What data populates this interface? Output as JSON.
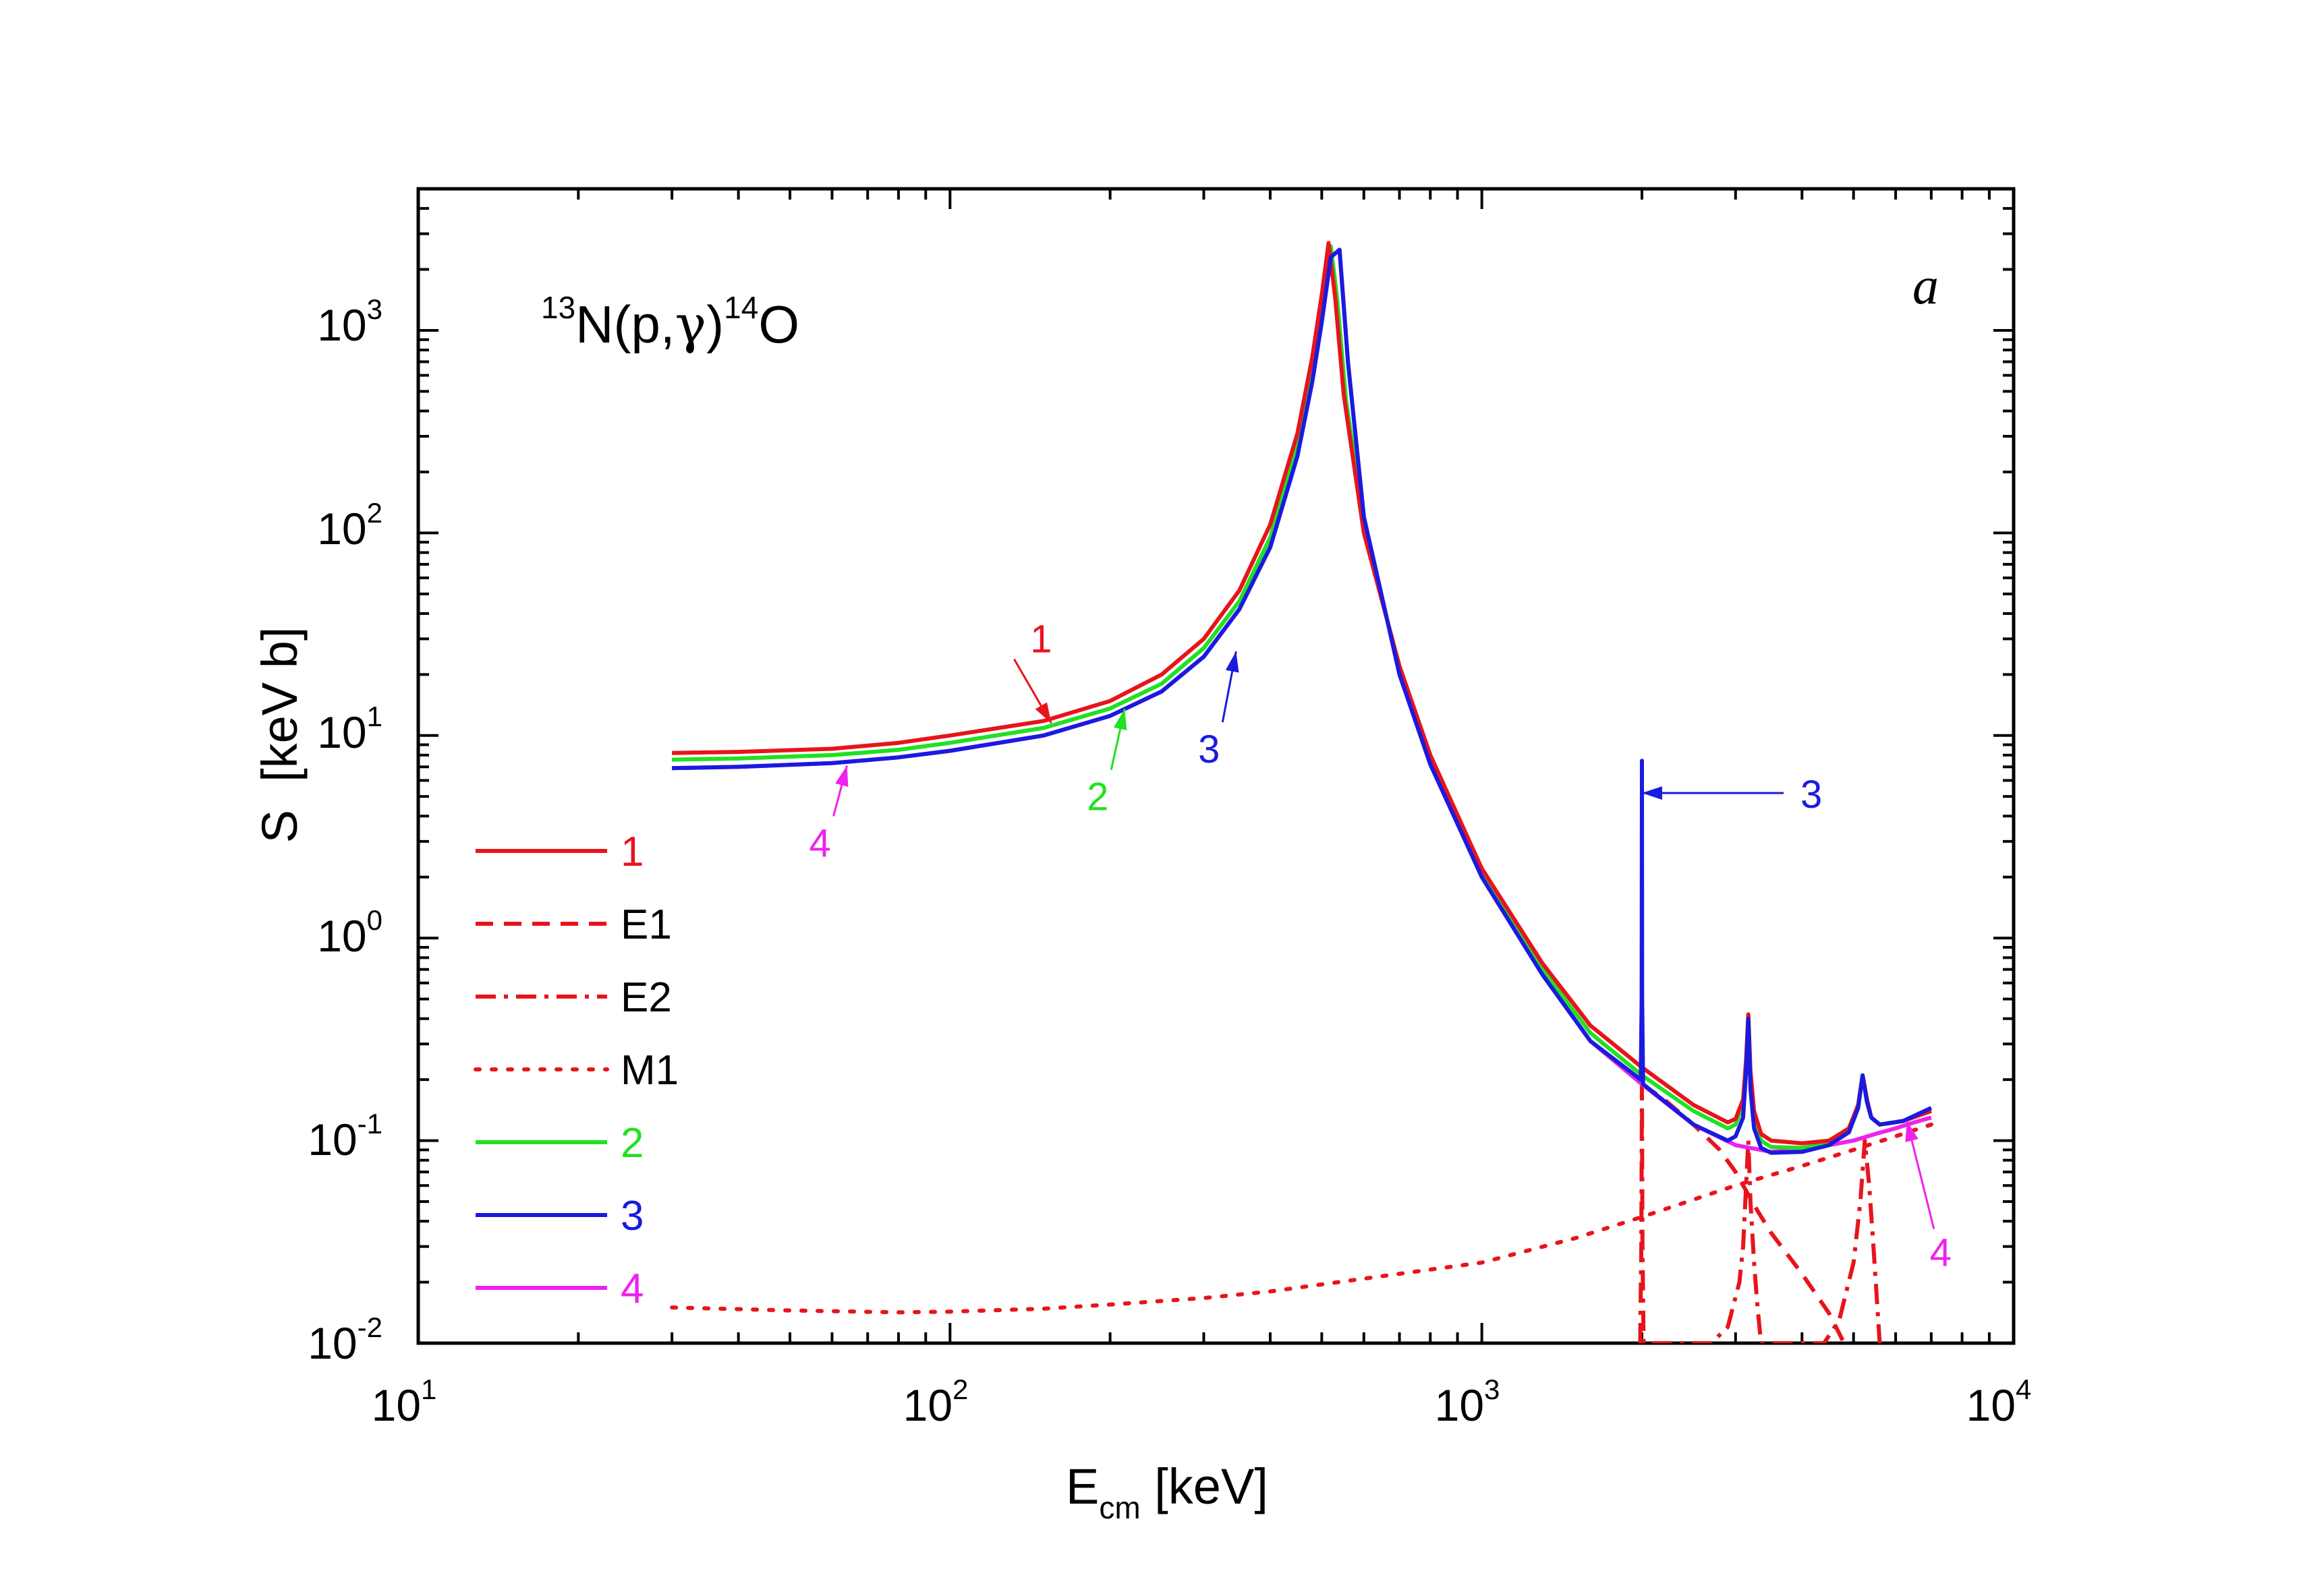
{
  "chart_data": {
    "type": "line",
    "title": "",
    "panel_label": "a",
    "reaction": {
      "target_mass": "13",
      "target": "N",
      "channel": "(p,",
      "gamma": "γ",
      "close": ")",
      "product_mass": "14",
      "product": "O"
    },
    "xaxis": {
      "label_main": "E",
      "label_sub": "cm",
      "label_unit": " [keV]",
      "scale": "log",
      "range": [
        10,
        10000
      ],
      "ticks": [
        {
          "value": 10,
          "base": "10",
          "exp": "1"
        },
        {
          "value": 100,
          "base": "10",
          "exp": "2"
        },
        {
          "value": 1000,
          "base": "10",
          "exp": "3"
        },
        {
          "value": 10000,
          "base": "10",
          "exp": "4"
        }
      ]
    },
    "yaxis": {
      "label": "S  [keV b]",
      "scale": "log",
      "range": [
        0.01,
        5000
      ],
      "ticks": [
        {
          "value": 0.01,
          "base": "10",
          "exp": "-2"
        },
        {
          "value": 0.1,
          "base": "10",
          "exp": "-1"
        },
        {
          "value": 1,
          "base": "10",
          "exp": "0"
        },
        {
          "value": 10,
          "base": "10",
          "exp": "1"
        },
        {
          "value": 100,
          "base": "10",
          "exp": "2"
        },
        {
          "value": 1000,
          "base": "10",
          "exp": "3"
        }
      ]
    },
    "legend": {
      "position": "left",
      "entries": [
        {
          "label": "1",
          "color": "#e8141c",
          "style": "solid"
        },
        {
          "label": "E1",
          "color": "#e8141c",
          "style": "dash"
        },
        {
          "label": "E2",
          "color": "#e8141c",
          "style": "dashdot"
        },
        {
          "label": "M1",
          "color": "#e8141c",
          "style": "dot"
        },
        {
          "label": "2",
          "color": "#22e022",
          "style": "solid"
        },
        {
          "label": "3",
          "color": "#1a1ae0",
          "style": "solid"
        },
        {
          "label": "4",
          "color": "#ee22ee",
          "style": "solid"
        }
      ]
    },
    "series": [
      {
        "name": "1",
        "color": "#e8141c",
        "style": "solid",
        "x": [
          30,
          40,
          60,
          80,
          100,
          150,
          200,
          250,
          300,
          350,
          400,
          450,
          480,
          500,
          515,
          530,
          550,
          600,
          700,
          800,
          1000,
          1300,
          1600,
          2000,
          2500,
          2900,
          3000,
          3100,
          3140,
          3170,
          3200,
          3250,
          3350,
          3500,
          4000,
          4500,
          4900,
          5100,
          5200,
          5300,
          5400,
          5600,
          6200,
          7000
        ],
        "y": [
          8.2,
          8.3,
          8.6,
          9.2,
          10.0,
          11.8,
          14.8,
          20,
          30,
          52,
          110,
          310,
          740,
          1500,
          2700,
          1450,
          480,
          100,
          22,
          8,
          2.2,
          0.75,
          0.37,
          0.23,
          0.15,
          0.123,
          0.128,
          0.16,
          0.25,
          0.42,
          0.22,
          0.14,
          0.108,
          0.1,
          0.097,
          0.1,
          0.115,
          0.15,
          0.21,
          0.16,
          0.13,
          0.12,
          0.125,
          0.14
        ]
      },
      {
        "name": "2",
        "color": "#22e022",
        "style": "solid",
        "x": [
          30,
          40,
          60,
          80,
          100,
          150,
          200,
          250,
          300,
          350,
          400,
          450,
          480,
          500,
          520,
          535,
          555,
          600,
          700,
          800,
          1000,
          1300,
          1600,
          2000,
          2500,
          2900,
          3000,
          3100,
          3140,
          3170,
          3200,
          3250,
          3350,
          3500,
          4000,
          4500,
          4900,
          5100,
          5200,
          5300,
          5400,
          5600,
          6200,
          7000
        ],
        "y": [
          7.6,
          7.7,
          8.0,
          8.5,
          9.2,
          10.9,
          13.6,
          18,
          27,
          46,
          95,
          270,
          640,
          1300,
          2600,
          1400,
          460,
          110,
          21,
          7.6,
          2.1,
          0.7,
          0.34,
          0.21,
          0.14,
          0.115,
          0.12,
          0.15,
          0.24,
          0.42,
          0.2,
          0.125,
          0.1,
          0.093,
          0.092,
          0.097,
          0.11,
          0.145,
          0.21,
          0.155,
          0.13,
          0.12,
          0.125,
          0.14
        ]
      },
      {
        "name": "3",
        "color": "#1a1ae0",
        "style": "solid",
        "x": [
          30,
          40,
          60,
          80,
          100,
          150,
          200,
          250,
          300,
          350,
          400,
          450,
          480,
          500,
          520,
          540,
          560,
          600,
          700,
          800,
          1000,
          1300,
          1600,
          1990,
          1998,
          2000,
          2002,
          2010,
          2500,
          2900,
          3000,
          3100,
          3140,
          3170,
          3200,
          3250,
          3350,
          3500,
          4000,
          4500,
          4900,
          5100,
          5200,
          5300,
          5400,
          5600,
          6200,
          7000
        ],
        "y": [
          6.9,
          7.0,
          7.3,
          7.8,
          8.4,
          10.0,
          12.5,
          16.5,
          24.5,
          42,
          85,
          240,
          560,
          1100,
          2300,
          2500,
          700,
          120,
          20,
          7.2,
          2.0,
          0.66,
          0.31,
          0.2,
          0.5,
          7.5,
          0.5,
          0.19,
          0.12,
          0.1,
          0.105,
          0.13,
          0.22,
          0.4,
          0.18,
          0.115,
          0.092,
          0.087,
          0.088,
          0.095,
          0.11,
          0.145,
          0.21,
          0.155,
          0.13,
          0.12,
          0.125,
          0.145
        ]
      },
      {
        "name": "4",
        "color": "#ee22ee",
        "style": "solid",
        "x": [
          30,
          40,
          60,
          80,
          100,
          150,
          200,
          250,
          300,
          350,
          400,
          450,
          480,
          500,
          520,
          540,
          560,
          600,
          700,
          800,
          1000,
          1300,
          1600,
          2000,
          2500,
          3000,
          3500,
          4000,
          4500,
          5000,
          5500,
          6000,
          6500,
          7000
        ],
        "y": [
          6.9,
          7.0,
          7.3,
          7.8,
          8.4,
          10.0,
          12.5,
          16.5,
          24.5,
          42,
          85,
          240,
          560,
          1100,
          2300,
          2500,
          700,
          120,
          20,
          7.2,
          2.0,
          0.66,
          0.31,
          0.19,
          0.12,
          0.095,
          0.088,
          0.09,
          0.095,
          0.1,
          0.108,
          0.115,
          0.123,
          0.13
        ]
      },
      {
        "name": "M1",
        "color": "#e8141c",
        "style": "dot",
        "x": [
          30,
          50,
          80,
          100,
          150,
          200,
          300,
          400,
          500,
          700,
          1000,
          1500,
          2000,
          3000,
          4000,
          5000,
          6000,
          7000
        ],
        "y": [
          0.015,
          0.0145,
          0.0142,
          0.0143,
          0.0148,
          0.0155,
          0.0167,
          0.018,
          0.0195,
          0.022,
          0.025,
          0.033,
          0.042,
          0.06,
          0.075,
          0.09,
          0.105,
          0.12
        ]
      },
      {
        "name": "E1",
        "color": "#e8141c",
        "style": "dash",
        "x": [
          2000,
          2200,
          2500,
          2800,
          3000,
          3100,
          3300,
          3500,
          4000,
          4500,
          4800
        ],
        "y": [
          0.19,
          0.16,
          0.12,
          0.09,
          0.07,
          0.06,
          0.045,
          0.035,
          0.022,
          0.014,
          0.01
        ]
      },
      {
        "name": "E2",
        "color": "#e8141c",
        "style": "dashdot",
        "x": [
          1985,
          1995,
          2000,
          2005,
          2015,
          2700,
          2900,
          3050,
          3100,
          3140,
          3170,
          3200,
          3250,
          3300,
          3350,
          4400,
          4700,
          5000,
          5150,
          5250,
          5350,
          5450,
          5600
        ],
        "y": [
          0.01,
          0.03,
          0.19,
          0.03,
          0.01,
          0.01,
          0.012,
          0.02,
          0.03,
          0.06,
          0.1,
          0.05,
          0.025,
          0.015,
          0.01,
          0.01,
          0.013,
          0.025,
          0.05,
          0.1,
          0.06,
          0.03,
          0.01
        ]
      }
    ],
    "annotations": [
      {
        "label": "1",
        "color": "#e8141c",
        "x": 155,
        "y": 11.5
      },
      {
        "label": "2",
        "color": "#22e022",
        "x": 213,
        "y": 13.5
      },
      {
        "label": "3",
        "color": "#1a1ae0",
        "x": 345,
        "y": 26
      },
      {
        "label": "4",
        "color": "#ee22ee",
        "x": 64,
        "y": 7.1
      },
      {
        "label": "3",
        "color": "#1a1ae0",
        "x": 2000,
        "y": 5.2
      },
      {
        "label": "4",
        "color": "#ee22ee",
        "x": 6300,
        "y": 0.125
      }
    ]
  }
}
